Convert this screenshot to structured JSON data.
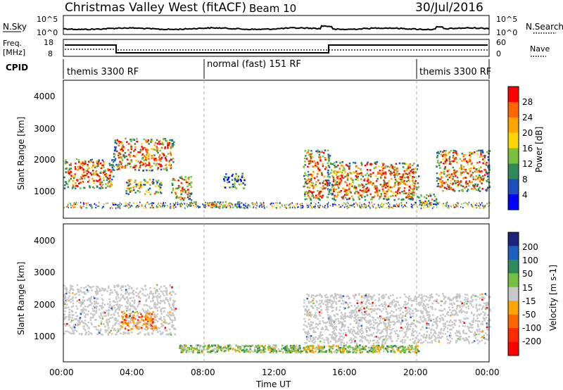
{
  "header": {
    "title": "Christmas Valley West (fitACF)",
    "beam": "Beam 10",
    "date": "30/Jul/2016"
  },
  "top_panels": {
    "nsky_label": "N.Sky",
    "nsky_ticks": [
      "10^5",
      "10^0"
    ],
    "nsky_right_ticks": [
      "10^5",
      "10^0"
    ],
    "nsearch_label": "N.Search",
    "freq_label_1": "Freq.",
    "freq_label_2": "[MHz]",
    "freq_ticks": [
      "18",
      "8"
    ],
    "nave_ticks": [
      "60",
      "0"
    ],
    "nave_label": "Nave",
    "cpid_label": "CPID",
    "cpid_segments": [
      {
        "label": "themis 3300 RF",
        "start": 0,
        "end": 8
      },
      {
        "label": "normal (fast) 151 RF",
        "start": 8,
        "end": 20
      },
      {
        "label": "themis 3300 RF",
        "start": 20,
        "end": 24
      }
    ]
  },
  "x_axis": {
    "label": "Time UT",
    "ticks": [
      "00:00",
      "04:00",
      "08:00",
      "12:00",
      "16:00",
      "20:00",
      "00:00"
    ],
    "range_hours": [
      0,
      24
    ]
  },
  "power_panel": {
    "ylabel": "Slant Range [km]",
    "yticks": [
      "4000",
      "3000",
      "2000",
      "1000"
    ],
    "colorbar_label": "Power [dB]",
    "colorbar_ticks": [
      "28",
      "24",
      "20",
      "16",
      "12",
      "8",
      "4"
    ],
    "colors": [
      "#0000ff",
      "#1f4fbf",
      "#2e8b57",
      "#7ac142",
      "#ffd700",
      "#ffa500",
      "#ff6600",
      "#ff0000"
    ]
  },
  "velocity_panel": {
    "ylabel": "Slant Range [km]",
    "yticks": [
      "4000",
      "3000",
      "2000",
      "1000"
    ],
    "colorbar_label": "Velocity [m s-1]",
    "colorbar_ticks": [
      "200",
      "100",
      "50",
      "15",
      "-15",
      "-50",
      "-100",
      "-200"
    ],
    "colors": [
      "#1a237e",
      "#1e5fbf",
      "#2e8b57",
      "#76c043",
      "#c8c8c8",
      "#ffa500",
      "#ff6600",
      "#ff2a00",
      "#ff0000"
    ]
  },
  "chart_data": {
    "type": "heatmap",
    "x_range": [
      0,
      24
    ],
    "y_range": [
      0,
      4500
    ],
    "power_blobs": [
      {
        "t0": 0.0,
        "t1": 2.8,
        "r0": 900,
        "r1": 1900,
        "level": "high"
      },
      {
        "t0": 2.8,
        "t1": 6.2,
        "r0": 1500,
        "r1": 2600,
        "level": "high"
      },
      {
        "t0": 3.5,
        "t1": 5.5,
        "r0": 700,
        "r1": 1200,
        "level": "mid"
      },
      {
        "t0": 6.0,
        "t1": 7.2,
        "r0": 500,
        "r1": 1300,
        "level": "high"
      },
      {
        "t0": 7.0,
        "t1": 10.0,
        "r0": 250,
        "r1": 450,
        "level": "high"
      },
      {
        "t0": 9.0,
        "t1": 10.2,
        "r0": 900,
        "r1": 1400,
        "level": "low"
      },
      {
        "t0": 13.5,
        "t1": 15.0,
        "r0": 500,
        "r1": 2200,
        "level": "high"
      },
      {
        "t0": 15.0,
        "t1": 20.0,
        "r0": 500,
        "r1": 1800,
        "level": "high"
      },
      {
        "t0": 20.0,
        "t1": 21.0,
        "r0": 300,
        "r1": 700,
        "level": "high"
      },
      {
        "t0": 21.0,
        "t1": 24.0,
        "r0": 800,
        "r1": 2200,
        "level": "high"
      }
    ],
    "velocity_blobs": [
      {
        "t0": 0.0,
        "t1": 6.3,
        "r0": 800,
        "r1": 2500,
        "class": "low"
      },
      {
        "t0": 3.2,
        "t1": 5.2,
        "r0": 1000,
        "r1": 1600,
        "class": "neg"
      },
      {
        "t0": 6.5,
        "t1": 20.0,
        "r0": 200,
        "r1": 450,
        "class": "pos"
      },
      {
        "t0": 13.5,
        "t1": 24.0,
        "r0": 500,
        "r1": 2200,
        "class": "low"
      }
    ]
  }
}
